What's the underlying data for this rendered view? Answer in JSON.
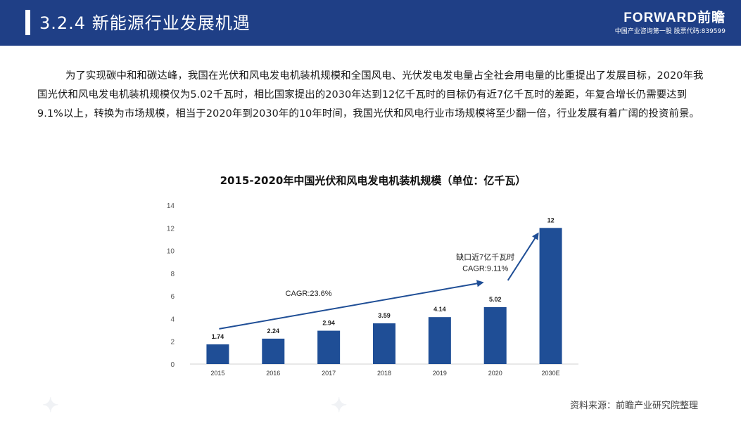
{
  "header": {
    "title": "3.2.4 新能源行业发展机遇",
    "brand_name": "FORWARD前瞻",
    "brand_sub": "中国产业咨询第一股 股票代码:839599"
  },
  "body_text": "为了实现碳中和和碳达峰，我国在光伏和风电发电机装机规模和全国风电、光伏发电发电量占全社会用电量的比重提出了发展目标，2020年我国光伏和风电发电机装机规模仅为5.02千瓦时，相比国家提出的2030年达到12亿千瓦时的目标仍有近7亿千瓦时的差距，年复合增长仍需要达到9.1%以上，转换为市场规模，相当于2020年到2030年的10年时间，我国光伏和风电行业市场规模将至少翻一倍，行业发展有着广阔的投资前景。",
  "source": "资料来源：前瞻产业研究院整理",
  "colors": {
    "header_bg": "#1f3f86",
    "bar": "#1f4e96",
    "arrow": "#1f4e96"
  },
  "chart_data": {
    "type": "bar",
    "title": "2015-2020年中国光伏和风电发电机装机规模（单位：亿千瓦）",
    "categories": [
      "2015",
      "2016",
      "2017",
      "2018",
      "2019",
      "2020",
      "2030E"
    ],
    "values": [
      1.74,
      2.24,
      2.94,
      3.59,
      4.14,
      5.02,
      12
    ],
    "value_labels": [
      "1.74",
      "2.24",
      "2.94",
      "3.59",
      "4.14",
      "5.02",
      "12"
    ],
    "ylim": [
      0,
      14
    ],
    "yticks": [
      0,
      2,
      4,
      6,
      8,
      10,
      12,
      14
    ],
    "grid": false,
    "annotations": [
      {
        "lines": [
          "CAGR:23.6%"
        ],
        "from": "2015",
        "to": "2020"
      },
      {
        "lines": [
          "缺口近7亿千瓦时",
          "CAGR:9.11%"
        ],
        "from": "2020",
        "to": "2030E"
      }
    ]
  }
}
